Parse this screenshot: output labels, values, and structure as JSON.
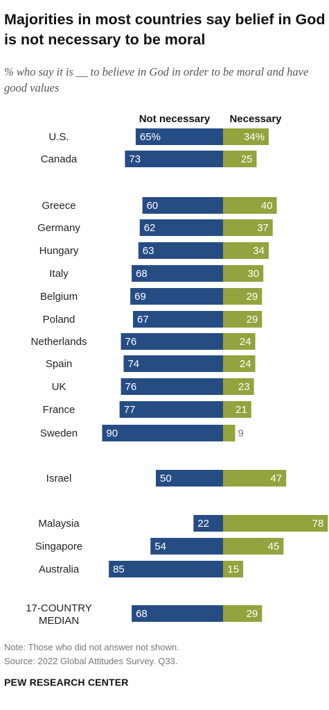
{
  "title": "Majorities in most countries say belief in God is not necessary to be moral",
  "subtitle": "% who say it is __ to believe in God in order to be moral and have good values",
  "note": "Note: Those who did not answer not shown.",
  "source": "Source: 2022 Global Attitudes Survey. Q33.",
  "brand": "PEW RESEARCH CENTER",
  "colors": {
    "not_necessary": "#264c84",
    "necessary": "#93a33d",
    "text_light": "#ffffff",
    "label": "#222222",
    "outside_label": "#777777"
  },
  "chart_data": {
    "type": "bar",
    "orientation": "horizontal-diverging",
    "series": [
      {
        "name": "Not necessary",
        "values": [
          65,
          73,
          60,
          62,
          63,
          68,
          69,
          67,
          76,
          74,
          76,
          77,
          90,
          50,
          22,
          54,
          85,
          68
        ]
      },
      {
        "name": "Necessary",
        "values": [
          34,
          25,
          40,
          37,
          34,
          30,
          29,
          29,
          24,
          24,
          23,
          21,
          9,
          47,
          78,
          45,
          15,
          29
        ]
      }
    ],
    "categories": [
      "U.S.",
      "Canada",
      "Greece",
      "Germany",
      "Hungary",
      "Italy",
      "Belgium",
      "Poland",
      "Netherlands",
      "Spain",
      "UK",
      "France",
      "Sweden",
      "Israel",
      "Malaysia",
      "Singapore",
      "Australia",
      "17-COUNTRY MEDIAN"
    ],
    "category_lines": [
      [
        "U.S."
      ],
      [
        "Canada"
      ],
      [
        "Greece"
      ],
      [
        "Germany"
      ],
      [
        "Hungary"
      ],
      [
        "Italy"
      ],
      [
        "Belgium"
      ],
      [
        "Poland"
      ],
      [
        "Netherlands"
      ],
      [
        "Spain"
      ],
      [
        "UK"
      ],
      [
        "France"
      ],
      [
        "Sweden"
      ],
      [
        "Israel"
      ],
      [
        "Malaysia"
      ],
      [
        "Singapore"
      ],
      [
        "Australia"
      ],
      [
        "17-COUNTRY",
        "MEDIAN"
      ]
    ],
    "value_labels_not_necessary": [
      "65%",
      "73",
      "60",
      "62",
      "63",
      "68",
      "69",
      "67",
      "76",
      "74",
      "76",
      "77",
      "90",
      "50",
      "22",
      "54",
      "85",
      "68"
    ],
    "value_labels_necessary": [
      "34%",
      "25",
      "40",
      "37",
      "34",
      "30",
      "29",
      "29",
      "24",
      "24",
      "23",
      "21",
      "9",
      "47",
      "78",
      "45",
      "15",
      "29"
    ],
    "groups": [
      [
        "U.S.",
        "Canada"
      ],
      [
        "Greece",
        "Germany",
        "Hungary",
        "Italy",
        "Belgium",
        "Poland",
        "Netherlands",
        "Spain",
        "UK",
        "France",
        "Sweden"
      ],
      [
        "Israel"
      ],
      [
        "Malaysia",
        "Singapore",
        "Australia"
      ],
      [
        "17-COUNTRY MEDIAN"
      ]
    ]
  }
}
